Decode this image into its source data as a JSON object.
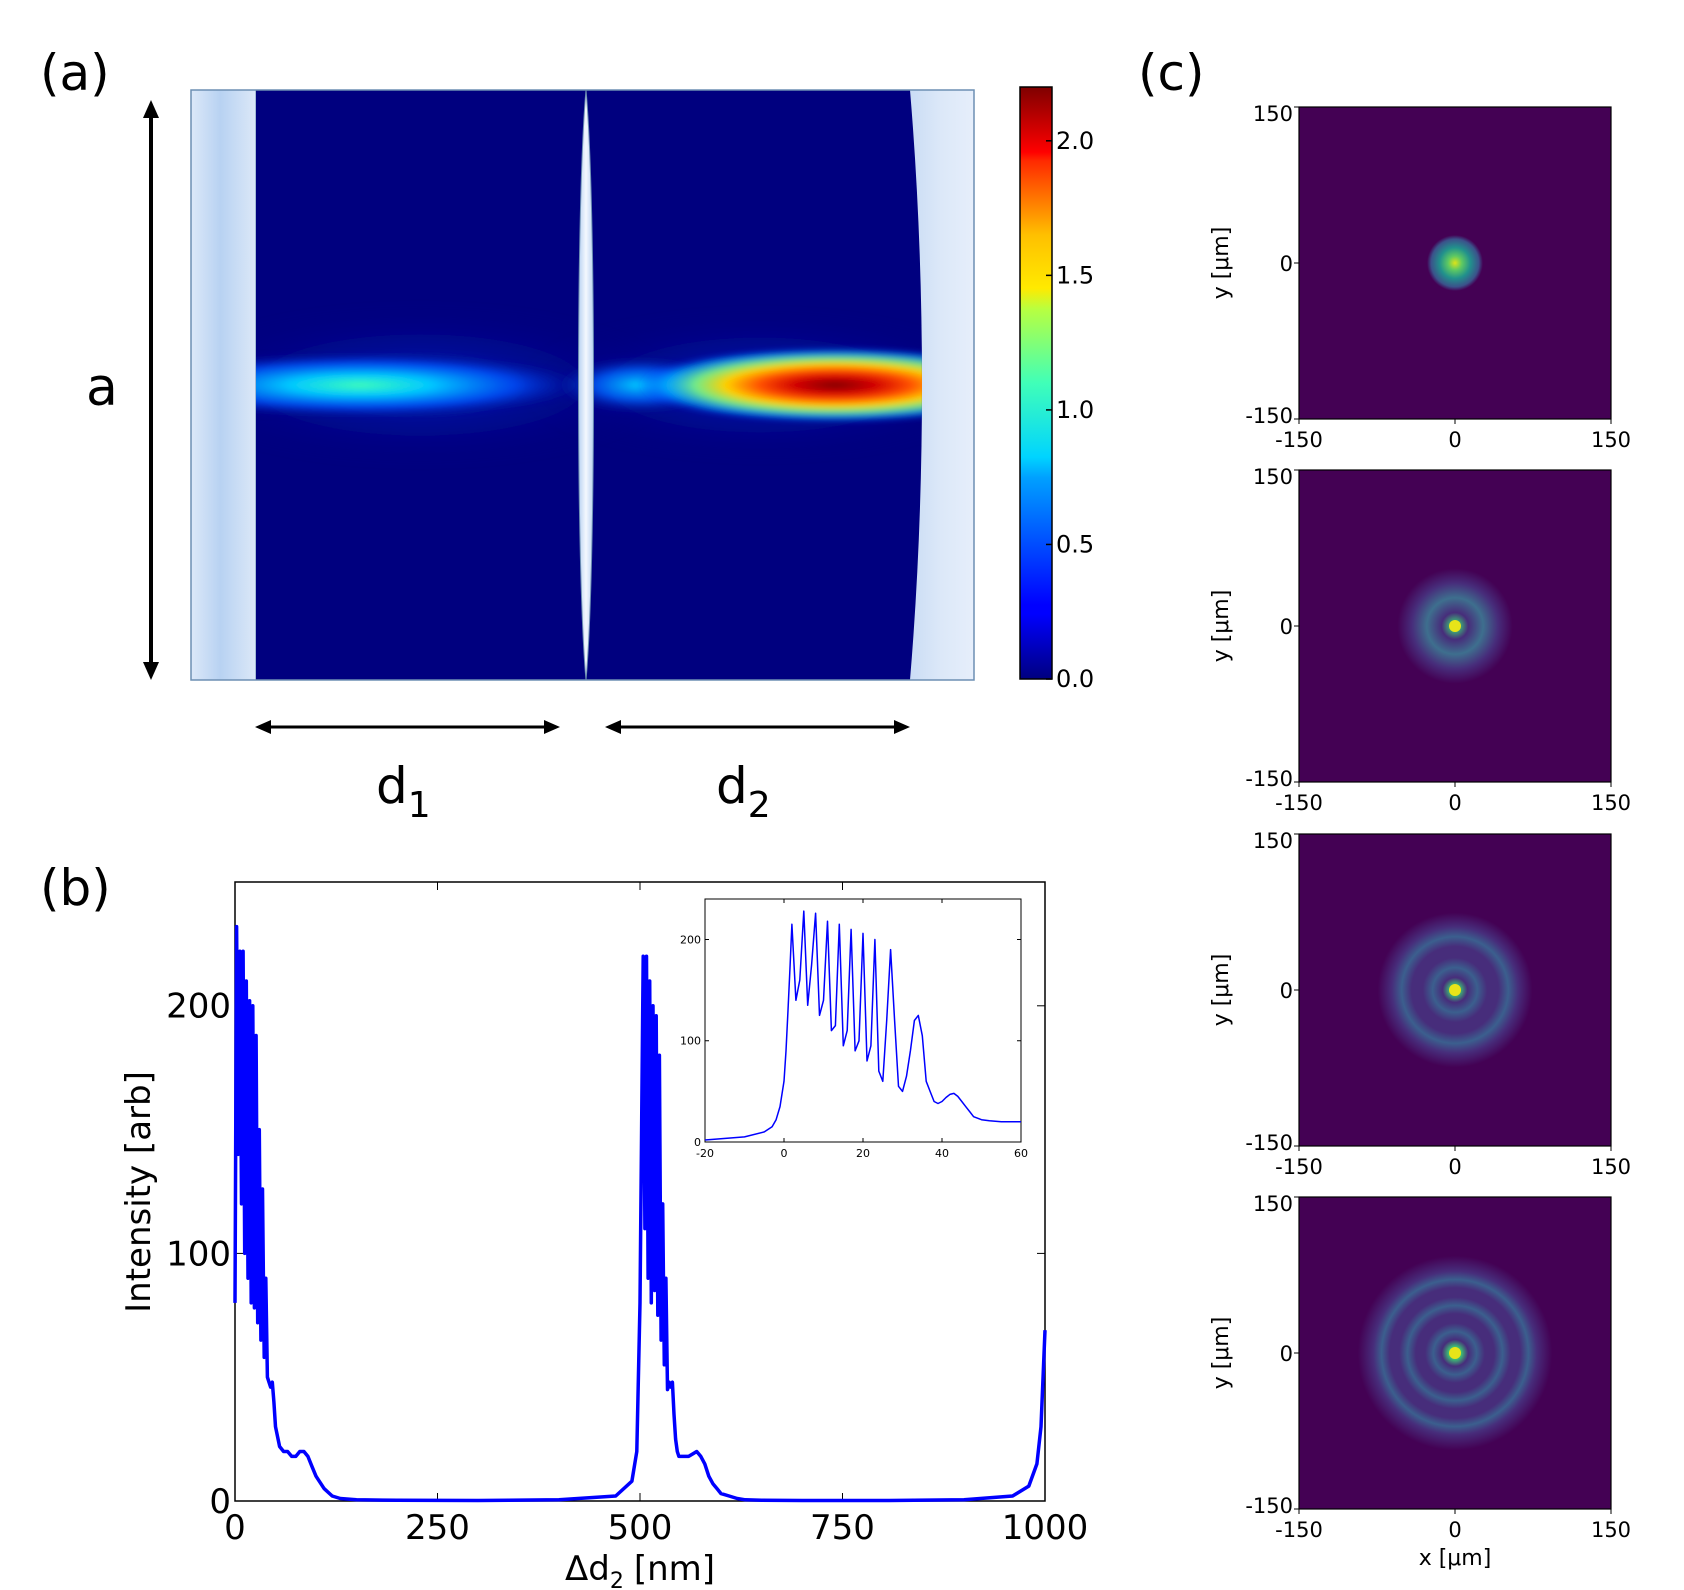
{
  "panel_labels": {
    "a": "(a)",
    "b": "(b)",
    "c": "(c)"
  },
  "panel_a": {
    "height_label": "a",
    "d1_label": "d",
    "d1_sub": "1",
    "d2_label": "d",
    "d2_sub": "2",
    "colorbar_ticks": [
      "0.0",
      "0.5",
      "1.0",
      "1.5",
      "2.0"
    ],
    "colorbar_values": [
      0.0,
      0.5,
      1.0,
      1.5,
      2.0
    ],
    "colorbar_range": [
      0.0,
      2.2
    ]
  },
  "panel_c": {
    "ylabel": "y [μm]",
    "xlabel": "x [μm]",
    "tick_labels": [
      "-150",
      "0",
      "150"
    ],
    "ring_counts": [
      0,
      1,
      2,
      3
    ]
  },
  "colors": {
    "jet_bg": "#00007f",
    "line": "#0000ff",
    "viridis_bg": "#440154",
    "mirror": "#d6e4f7"
  },
  "chart_data": [
    {
      "type": "line",
      "title": "",
      "xlabel": "Δd",
      "xlabel_sub": "2",
      "xlabel_unit": "[nm]",
      "ylabel": "Intensity [arb]",
      "xlim": [
        0,
        1000
      ],
      "ylim": [
        0,
        250
      ],
      "xticks": [
        0,
        250,
        500,
        750,
        1000
      ],
      "xtick_labels": [
        "0",
        "250",
        "500",
        "750",
        "1000"
      ],
      "yticks": [
        0,
        100,
        200
      ],
      "ytick_labels": [
        "0",
        "100",
        "200"
      ],
      "series": [
        {
          "name": "intensity",
          "x": [
            0,
            2,
            4,
            6,
            8,
            10,
            12,
            14,
            16,
            18,
            20,
            22,
            24,
            26,
            28,
            30,
            32,
            34,
            36,
            38,
            40,
            42,
            44,
            46,
            48,
            50,
            55,
            60,
            65,
            70,
            75,
            80,
            85,
            90,
            95,
            100,
            110,
            120,
            130,
            150,
            200,
            300,
            400,
            470,
            490,
            496,
            500,
            502,
            504,
            506,
            508,
            510,
            512,
            514,
            516,
            518,
            520,
            522,
            524,
            526,
            528,
            530,
            532,
            534,
            536,
            538,
            540,
            542,
            544,
            546,
            548,
            550,
            555,
            560,
            565,
            570,
            575,
            580,
            585,
            590,
            595,
            600,
            610,
            620,
            630,
            650,
            700,
            800,
            900,
            960,
            980,
            990,
            995,
            1000
          ],
          "y": [
            80,
            232,
            140,
            222,
            120,
            222,
            100,
            210,
            90,
            202,
            80,
            200,
            78,
            188,
            72,
            150,
            65,
            126,
            58,
            90,
            50,
            48,
            46,
            48,
            40,
            30,
            22,
            20,
            20,
            18,
            18,
            20,
            20,
            18,
            14,
            10,
            5,
            2,
            1,
            0.5,
            0.3,
            0.2,
            0.5,
            2,
            8,
            20,
            80,
            150,
            220,
            110,
            220,
            90,
            210,
            80,
            200,
            85,
            196,
            75,
            180,
            65,
            120,
            55,
            90,
            45,
            48,
            46,
            48,
            35,
            25,
            20,
            18,
            18,
            18,
            18,
            19,
            20,
            18,
            15,
            10,
            7,
            5,
            3,
            2,
            1,
            0.5,
            0.3,
            0.2,
            0.2,
            0.5,
            2,
            6,
            15,
            30,
            69
          ]
        }
      ]
    },
    {
      "type": "line",
      "title": "inset",
      "xlim": [
        -20,
        60
      ],
      "ylim": [
        0,
        240
      ],
      "xticks": [
        -20,
        0,
        20,
        40,
        60
      ],
      "xtick_labels": [
        "-20",
        "0",
        "20",
        "40",
        "60"
      ],
      "yticks": [
        0,
        100,
        200
      ],
      "ytick_labels": [
        "0",
        "100",
        "200"
      ],
      "series": [
        {
          "name": "intensity",
          "x": [
            -20,
            -10,
            -5,
            -3,
            -2,
            -1,
            0,
            0.5,
            1,
            1.5,
            2,
            3,
            4,
            5,
            6,
            7,
            8,
            9,
            10,
            11,
            12,
            13,
            14,
            15,
            16,
            17,
            18,
            19,
            20,
            21,
            22,
            23,
            24,
            25,
            26,
            27,
            28,
            29,
            30,
            31,
            32,
            33,
            34,
            35,
            36,
            37,
            38,
            39,
            40,
            41,
            42,
            43,
            44,
            45,
            46,
            47,
            48,
            50,
            52,
            55,
            60
          ],
          "y": [
            2,
            5,
            10,
            15,
            22,
            35,
            60,
            90,
            130,
            170,
            215,
            140,
            160,
            228,
            135,
            175,
            226,
            125,
            140,
            218,
            110,
            115,
            215,
            95,
            110,
            210,
            90,
            100,
            206,
            80,
            95,
            200,
            70,
            60,
            120,
            190,
            120,
            55,
            50,
            65,
            90,
            120,
            125,
            105,
            60,
            50,
            40,
            38,
            40,
            44,
            47,
            48,
            45,
            40,
            35,
            30,
            25,
            22,
            21,
            20,
            20
          ]
        }
      ]
    }
  ]
}
